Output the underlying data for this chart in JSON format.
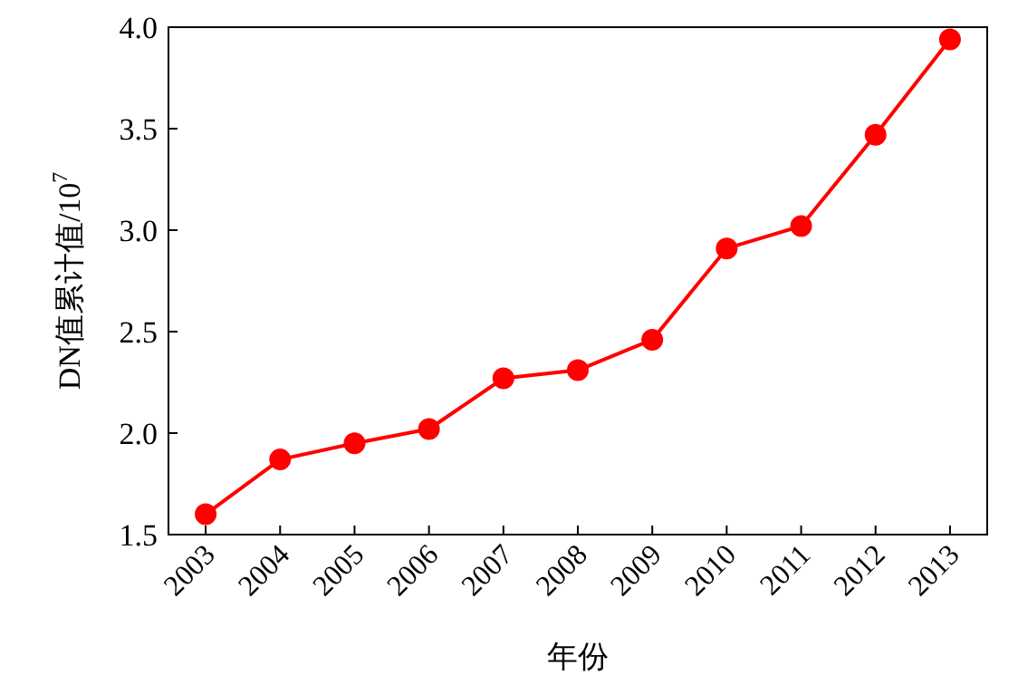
{
  "chart_data": {
    "type": "line",
    "xlabel": "年份",
    "ylabel": "DN值累计值/10$^{7}$",
    "categories": [
      "2003",
      "2004",
      "2005",
      "2006",
      "2007",
      "2008",
      "2009",
      "2010",
      "2011",
      "2012",
      "2013"
    ],
    "values": [
      1.6,
      1.87,
      1.95,
      2.02,
      2.27,
      2.31,
      2.46,
      2.91,
      3.02,
      3.47,
      3.94
    ],
    "color": "#ff0000",
    "marker": "circle",
    "ylim": [
      1.5,
      4.0
    ],
    "yticks": [
      1.5,
      {
        "value": 2,
        "label": "2.0"
      },
      2.5,
      {
        "value": 3,
        "label": "3.0"
      },
      3.5,
      {
        "value": 4,
        "label": "4.0"
      }
    ]
  }
}
